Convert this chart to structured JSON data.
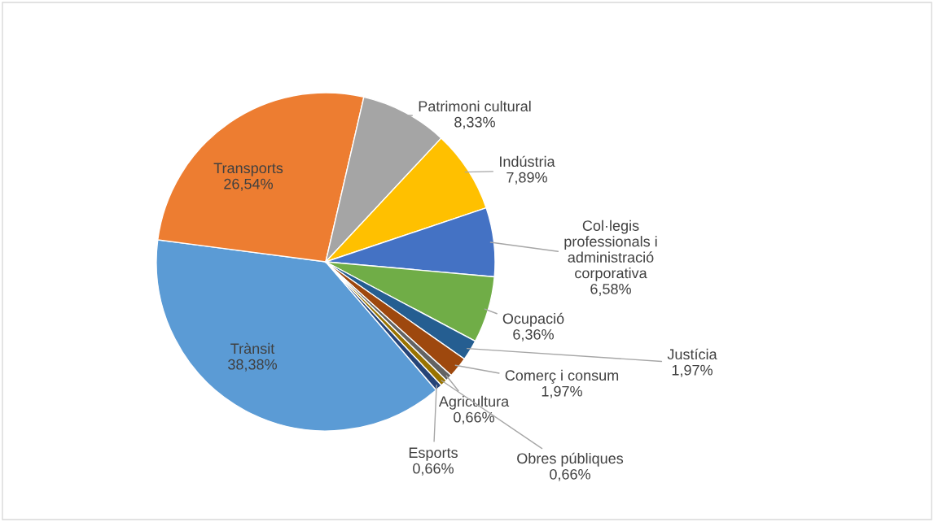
{
  "chart_data": {
    "type": "pie",
    "categories": [
      "Trànsit",
      "Transports",
      "Patrimoni cultural",
      "Indústria",
      "Col·legis professionals i administració corporativa",
      "Ocupació",
      "Justícia",
      "Comerç i consum",
      "Agricultura",
      "Obres públiques",
      "Esports"
    ],
    "values": [
      38.38,
      26.54,
      8.33,
      7.89,
      6.58,
      6.36,
      1.97,
      1.97,
      0.66,
      0.66,
      0.66
    ],
    "value_labels": [
      "38,38%",
      "26,54%",
      "8,33%",
      "7,89%",
      "6,58%",
      "6,36%",
      "1,97%",
      "1,97%",
      "0,66%",
      "0,66%",
      "0,66%"
    ],
    "colors": [
      "#5b9bd5",
      "#ed7d31",
      "#a5a5a5",
      "#ffc000",
      "#4472c4",
      "#70ad47",
      "#255e91",
      "#9e480e",
      "#636363",
      "#997300",
      "#264478"
    ],
    "legend": false
  }
}
